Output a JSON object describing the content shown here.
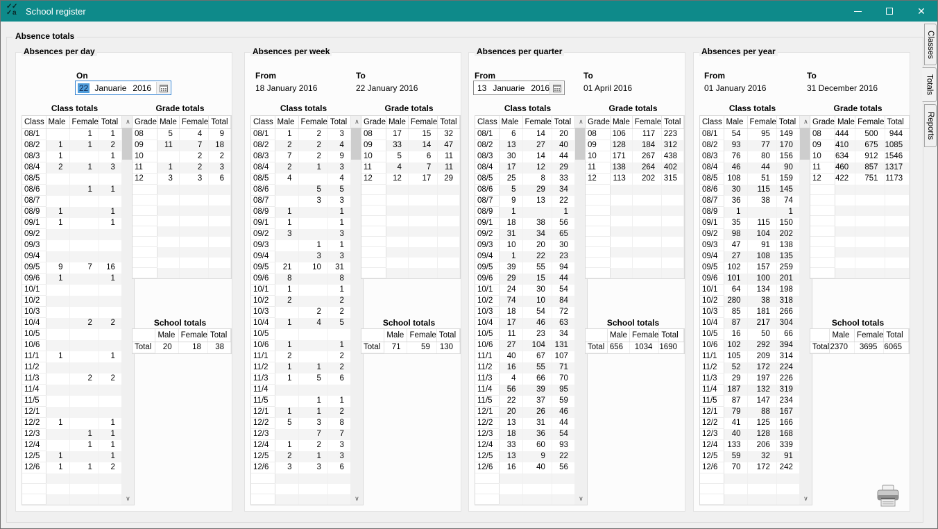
{
  "window": {
    "title": "School register"
  },
  "icons": {
    "close_glyph": "✕",
    "scroll_up": "∧",
    "scroll_down": "∨"
  },
  "group_title": "Absence totals",
  "side_tabs": [
    {
      "label": "Classes",
      "active": false
    },
    {
      "label": "Totals",
      "active": true
    },
    {
      "label": "Reports",
      "active": false
    }
  ],
  "labels": {
    "class_totals": "Class totals",
    "grade_totals": "Grade totals",
    "school_totals": "School totals"
  },
  "headers": {
    "class": [
      "Class",
      "Male",
      "Female",
      "Total"
    ],
    "grade": [
      "Grade",
      "Male",
      "Female",
      "Total"
    ],
    "school": [
      "",
      "Male",
      "Female",
      "Total"
    ]
  },
  "panels": [
    {
      "title": "Absences per day",
      "fields": [
        {
          "label": "On",
          "type": "picker",
          "day": "22",
          "month": "Januarie",
          "year": "2016",
          "focused": true
        }
      ],
      "class_rows": [
        [
          "08/1",
          "",
          "1",
          "1"
        ],
        [
          "08/2",
          "1",
          "1",
          "2"
        ],
        [
          "08/3",
          "1",
          "",
          "1"
        ],
        [
          "08/4",
          "2",
          "1",
          "3"
        ],
        [
          "08/5",
          "",
          "",
          ""
        ],
        [
          "08/6",
          "",
          "1",
          "1"
        ],
        [
          "08/7",
          "",
          "",
          ""
        ],
        [
          "08/9",
          "1",
          "",
          "1"
        ],
        [
          "09/1",
          "1",
          "",
          "1"
        ],
        [
          "09/2",
          "",
          "",
          ""
        ],
        [
          "09/3",
          "",
          "",
          ""
        ],
        [
          "09/4",
          "",
          "",
          ""
        ],
        [
          "09/5",
          "9",
          "7",
          "16"
        ],
        [
          "09/6",
          "1",
          "",
          "1"
        ],
        [
          "10/1",
          "",
          "",
          ""
        ],
        [
          "10/2",
          "",
          "",
          ""
        ],
        [
          "10/3",
          "",
          "",
          ""
        ],
        [
          "10/4",
          "",
          "2",
          "2"
        ],
        [
          "10/5",
          "",
          "",
          ""
        ],
        [
          "10/6",
          "",
          "",
          ""
        ],
        [
          "11/1",
          "1",
          "",
          "1"
        ],
        [
          "11/2",
          "",
          "",
          ""
        ],
        [
          "11/3",
          "",
          "2",
          "2"
        ],
        [
          "11/4",
          "",
          "",
          ""
        ],
        [
          "11/5",
          "",
          "",
          ""
        ],
        [
          "12/1",
          "",
          "",
          ""
        ],
        [
          "12/2",
          "1",
          "",
          "1"
        ],
        [
          "12/3",
          "",
          "1",
          "1"
        ],
        [
          "12/4",
          "",
          "1",
          "1"
        ],
        [
          "12/5",
          "1",
          "",
          "1"
        ],
        [
          "12/6",
          "1",
          "1",
          "2"
        ]
      ],
      "grade_rows": [
        [
          "08",
          "5",
          "4",
          "9"
        ],
        [
          "09",
          "11",
          "7",
          "18"
        ],
        [
          "10",
          "",
          "2",
          "2"
        ],
        [
          "11",
          "1",
          "2",
          "3"
        ],
        [
          "12",
          "3",
          "3",
          "6"
        ]
      ],
      "school_rows": [
        [
          "Total",
          "20",
          "18",
          "38"
        ]
      ]
    },
    {
      "title": "Absences per week",
      "fields": [
        {
          "label": "From",
          "type": "text",
          "value": "18 January 2016"
        },
        {
          "label": "To",
          "type": "text",
          "value": "22 January 2016"
        }
      ],
      "class_rows": [
        [
          "08/1",
          "1",
          "2",
          "3"
        ],
        [
          "08/2",
          "2",
          "2",
          "4"
        ],
        [
          "08/3",
          "7",
          "2",
          "9"
        ],
        [
          "08/4",
          "2",
          "1",
          "3"
        ],
        [
          "08/5",
          "4",
          "",
          "4"
        ],
        [
          "08/6",
          "",
          "5",
          "5"
        ],
        [
          "08/7",
          "",
          "3",
          "3"
        ],
        [
          "08/9",
          "1",
          "",
          "1"
        ],
        [
          "09/1",
          "1",
          "",
          "1"
        ],
        [
          "09/2",
          "3",
          "",
          "3"
        ],
        [
          "09/3",
          "",
          "1",
          "1"
        ],
        [
          "09/4",
          "",
          "3",
          "3"
        ],
        [
          "09/5",
          "21",
          "10",
          "31"
        ],
        [
          "09/6",
          "8",
          "",
          "8"
        ],
        [
          "10/1",
          "1",
          "",
          "1"
        ],
        [
          "10/2",
          "2",
          "",
          "2"
        ],
        [
          "10/3",
          "",
          "2",
          "2"
        ],
        [
          "10/4",
          "1",
          "4",
          "5"
        ],
        [
          "10/5",
          "",
          "",
          ""
        ],
        [
          "10/6",
          "1",
          "",
          "1"
        ],
        [
          "11/1",
          "2",
          "",
          "2"
        ],
        [
          "11/2",
          "1",
          "1",
          "2"
        ],
        [
          "11/3",
          "1",
          "5",
          "6"
        ],
        [
          "11/4",
          "",
          "",
          ""
        ],
        [
          "11/5",
          "",
          "1",
          "1"
        ],
        [
          "12/1",
          "1",
          "1",
          "2"
        ],
        [
          "12/2",
          "5",
          "3",
          "8"
        ],
        [
          "12/3",
          "",
          "7",
          "7"
        ],
        [
          "12/4",
          "1",
          "2",
          "3"
        ],
        [
          "12/5",
          "2",
          "1",
          "3"
        ],
        [
          "12/6",
          "3",
          "3",
          "6"
        ]
      ],
      "grade_rows": [
        [
          "08",
          "17",
          "15",
          "32"
        ],
        [
          "09",
          "33",
          "14",
          "47"
        ],
        [
          "10",
          "5",
          "6",
          "11"
        ],
        [
          "11",
          "4",
          "7",
          "11"
        ],
        [
          "12",
          "12",
          "17",
          "29"
        ]
      ],
      "school_rows": [
        [
          "Total",
          "71",
          "59",
          "130"
        ]
      ]
    },
    {
      "title": "Absences per quarter",
      "fields": [
        {
          "label": "From",
          "type": "picker",
          "day": "13",
          "month": "Januarie",
          "year": "2016",
          "focused": false
        },
        {
          "label": "To",
          "type": "text",
          "value": "01 April 2016"
        }
      ],
      "class_rows": [
        [
          "08/1",
          "6",
          "14",
          "20"
        ],
        [
          "08/2",
          "13",
          "27",
          "40"
        ],
        [
          "08/3",
          "30",
          "14",
          "44"
        ],
        [
          "08/4",
          "17",
          "12",
          "29"
        ],
        [
          "08/5",
          "25",
          "8",
          "33"
        ],
        [
          "08/6",
          "5",
          "29",
          "34"
        ],
        [
          "08/7",
          "9",
          "13",
          "22"
        ],
        [
          "08/9",
          "1",
          "",
          "1"
        ],
        [
          "09/1",
          "18",
          "38",
          "56"
        ],
        [
          "09/2",
          "31",
          "34",
          "65"
        ],
        [
          "09/3",
          "10",
          "20",
          "30"
        ],
        [
          "09/4",
          "1",
          "22",
          "23"
        ],
        [
          "09/5",
          "39",
          "55",
          "94"
        ],
        [
          "09/6",
          "29",
          "15",
          "44"
        ],
        [
          "10/1",
          "24",
          "30",
          "54"
        ],
        [
          "10/2",
          "74",
          "10",
          "84"
        ],
        [
          "10/3",
          "18",
          "54",
          "72"
        ],
        [
          "10/4",
          "17",
          "46",
          "63"
        ],
        [
          "10/5",
          "11",
          "23",
          "34"
        ],
        [
          "10/6",
          "27",
          "104",
          "131"
        ],
        [
          "11/1",
          "40",
          "67",
          "107"
        ],
        [
          "11/2",
          "16",
          "55",
          "71"
        ],
        [
          "11/3",
          "4",
          "66",
          "70"
        ],
        [
          "11/4",
          "56",
          "39",
          "95"
        ],
        [
          "11/5",
          "22",
          "37",
          "59"
        ],
        [
          "12/1",
          "20",
          "26",
          "46"
        ],
        [
          "12/2",
          "13",
          "31",
          "44"
        ],
        [
          "12/3",
          "18",
          "36",
          "54"
        ],
        [
          "12/4",
          "33",
          "60",
          "93"
        ],
        [
          "12/5",
          "13",
          "9",
          "22"
        ],
        [
          "12/6",
          "16",
          "40",
          "56"
        ]
      ],
      "grade_rows": [
        [
          "08",
          "106",
          "117",
          "223"
        ],
        [
          "09",
          "128",
          "184",
          "312"
        ],
        [
          "10",
          "171",
          "267",
          "438"
        ],
        [
          "11",
          "138",
          "264",
          "402"
        ],
        [
          "12",
          "113",
          "202",
          "315"
        ]
      ],
      "school_rows": [
        [
          "Total",
          "656",
          "1034",
          "1690"
        ]
      ]
    },
    {
      "title": "Absences per year",
      "fields": [
        {
          "label": "From",
          "type": "text",
          "value": "01 January 2016"
        },
        {
          "label": "To",
          "type": "text",
          "value": "31 December 2016"
        }
      ],
      "class_rows": [
        [
          "08/1",
          "54",
          "95",
          "149"
        ],
        [
          "08/2",
          "93",
          "77",
          "170"
        ],
        [
          "08/3",
          "76",
          "80",
          "156"
        ],
        [
          "08/4",
          "46",
          "44",
          "90"
        ],
        [
          "08/5",
          "108",
          "51",
          "159"
        ],
        [
          "08/6",
          "30",
          "115",
          "145"
        ],
        [
          "08/7",
          "36",
          "38",
          "74"
        ],
        [
          "08/9",
          "1",
          "",
          "1"
        ],
        [
          "09/1",
          "35",
          "115",
          "150"
        ],
        [
          "09/2",
          "98",
          "104",
          "202"
        ],
        [
          "09/3",
          "47",
          "91",
          "138"
        ],
        [
          "09/4",
          "27",
          "108",
          "135"
        ],
        [
          "09/5",
          "102",
          "157",
          "259"
        ],
        [
          "09/6",
          "101",
          "100",
          "201"
        ],
        [
          "10/1",
          "64",
          "134",
          "198"
        ],
        [
          "10/2",
          "280",
          "38",
          "318"
        ],
        [
          "10/3",
          "85",
          "181",
          "266"
        ],
        [
          "10/4",
          "87",
          "217",
          "304"
        ],
        [
          "10/5",
          "16",
          "50",
          "66"
        ],
        [
          "10/6",
          "102",
          "292",
          "394"
        ],
        [
          "11/1",
          "105",
          "209",
          "314"
        ],
        [
          "11/2",
          "52",
          "172",
          "224"
        ],
        [
          "11/3",
          "29",
          "197",
          "226"
        ],
        [
          "11/4",
          "187",
          "132",
          "319"
        ],
        [
          "11/5",
          "87",
          "147",
          "234"
        ],
        [
          "12/1",
          "79",
          "88",
          "167"
        ],
        [
          "12/2",
          "41",
          "125",
          "166"
        ],
        [
          "12/3",
          "40",
          "128",
          "168"
        ],
        [
          "12/4",
          "133",
          "206",
          "339"
        ],
        [
          "12/5",
          "59",
          "32",
          "91"
        ],
        [
          "12/6",
          "70",
          "172",
          "242"
        ]
      ],
      "grade_rows": [
        [
          "08",
          "444",
          "500",
          "944"
        ],
        [
          "09",
          "410",
          "675",
          "1085"
        ],
        [
          "10",
          "634",
          "912",
          "1546"
        ],
        [
          "11",
          "460",
          "857",
          "1317"
        ],
        [
          "12",
          "422",
          "751",
          "1173"
        ]
      ],
      "school_rows": [
        [
          "Total",
          "2370",
          "3695",
          "6065"
        ]
      ]
    }
  ]
}
